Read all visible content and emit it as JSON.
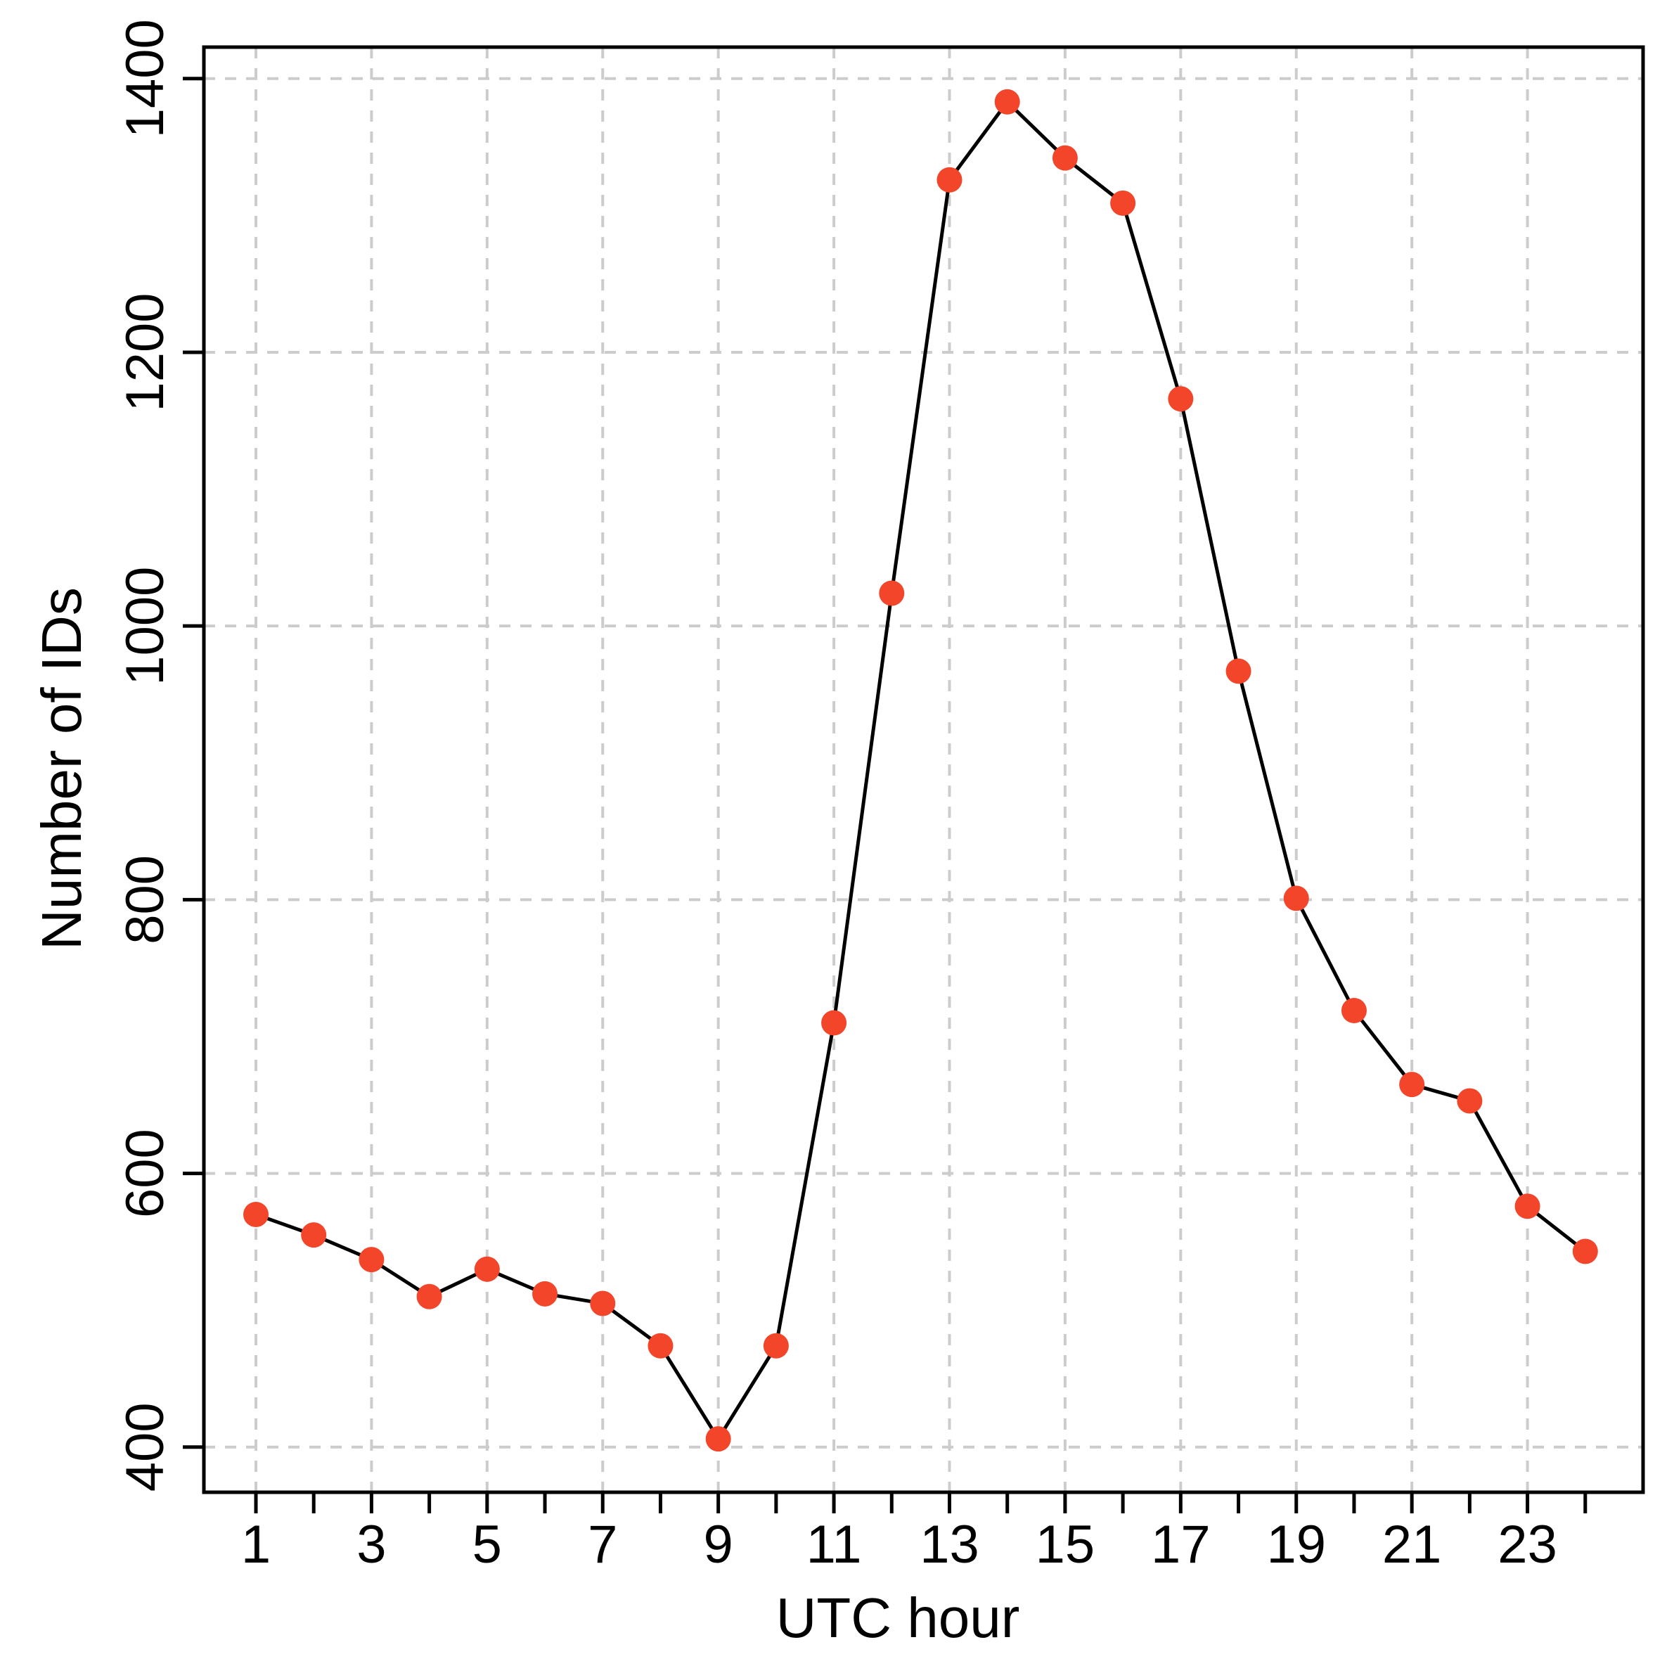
{
  "chart_data": {
    "type": "line",
    "title": "",
    "xlabel": "UTC hour",
    "ylabel": "Number of IDs",
    "x": [
      1,
      2,
      3,
      4,
      5,
      6,
      7,
      8,
      9,
      10,
      11,
      12,
      13,
      14,
      15,
      16,
      17,
      18,
      19,
      20,
      21,
      22,
      23,
      24
    ],
    "series": [
      {
        "values": [
          570,
          555,
          537,
          510,
          530,
          512,
          505,
          474,
          406,
          474,
          710,
          1024,
          1326,
          1383,
          1342,
          1309,
          1166,
          967,
          801,
          719,
          665,
          653,
          576,
          543
        ]
      }
    ],
    "xticks": [
      1,
      3,
      5,
      7,
      9,
      11,
      13,
      15,
      17,
      19,
      21,
      23
    ],
    "yticks": [
      400,
      600,
      800,
      1000,
      1200,
      1400
    ],
    "xlim": [
      0.1,
      25.0
    ],
    "ylim": [
      367,
      1423
    ],
    "grid": true,
    "colors": {
      "line": "#000000",
      "marker": "#f2452a",
      "grid": "#cccccc"
    }
  }
}
